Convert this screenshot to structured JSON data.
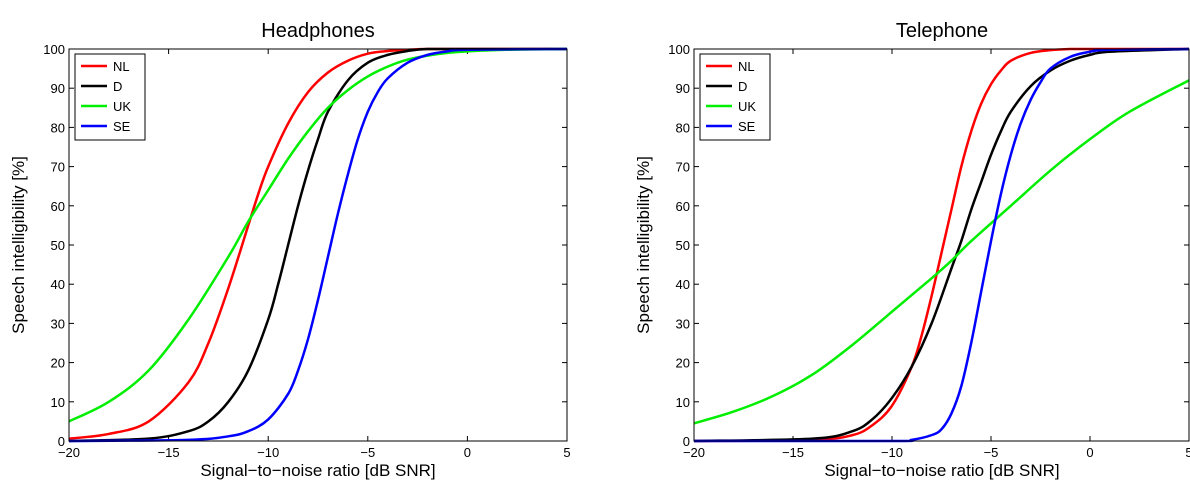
{
  "chart_data": [
    {
      "type": "line",
      "title": "Headphones",
      "xlabel": "Signal−to−noise ratio [dB SNR]",
      "ylabel": "Speech intelligibility [%]",
      "xlim": [
        -20,
        5
      ],
      "ylim": [
        0,
        100
      ],
      "xticks": [
        "−20",
        "−15",
        "−10",
        "−5",
        "0",
        "5"
      ],
      "yticks": [
        "0",
        "10",
        "20",
        "30",
        "40",
        "50",
        "60",
        "70",
        "80",
        "90",
        "100"
      ],
      "grid": false,
      "legend_position": "top-left",
      "series": [
        {
          "name": "NL",
          "color": "#ff0000",
          "x": [
            -20,
            -18,
            -16,
            -14,
            -13,
            -12,
            -11,
            -10.5,
            -10,
            -9,
            -8,
            -7,
            -6,
            -5,
            -4,
            -3,
            -2,
            0,
            5
          ],
          "y": [
            0.6,
            1.8,
            5,
            15,
            25,
            39,
            55,
            63,
            70,
            81,
            89,
            94,
            97,
            98.8,
            99.5,
            99.8,
            100,
            100,
            100
          ]
        },
        {
          "name": "D",
          "color": "#000000",
          "x": [
            -20,
            -16,
            -14,
            -13,
            -12,
            -11,
            -10,
            -9.5,
            -9,
            -8.5,
            -8,
            -7.5,
            -7,
            -6,
            -5,
            -4,
            -3,
            -2,
            0,
            5
          ],
          "y": [
            0,
            0.6,
            2.5,
            5,
            10,
            18,
            31,
            40,
            50,
            60,
            69,
            77,
            84,
            92,
            96.5,
            98.5,
            99.5,
            100,
            100,
            100
          ]
        },
        {
          "name": "UK",
          "color": "#00ee00",
          "x": [
            -20,
            -18,
            -16,
            -14,
            -12,
            -11,
            -10,
            -9,
            -8,
            -7,
            -6,
            -5,
            -4,
            -3,
            -2,
            -1,
            0,
            2,
            5
          ],
          "y": [
            5,
            10,
            18,
            31,
            47,
            56,
            64,
            72,
            79,
            85,
            89.5,
            93,
            95.5,
            97.3,
            98.3,
            99,
            99.4,
            99.8,
            100
          ]
        },
        {
          "name": "SE",
          "color": "#0000ff",
          "x": [
            -20,
            -14,
            -12,
            -11,
            -10,
            -9,
            -8.5,
            -8,
            -7.5,
            -7,
            -6.5,
            -6,
            -5.5,
            -5,
            -4.5,
            -4,
            -3,
            -2,
            -1,
            0,
            5
          ],
          "y": [
            0,
            0.3,
            1.2,
            2.5,
            5.5,
            12,
            18,
            26,
            36,
            47,
            58,
            68,
            77,
            84,
            89,
            92.5,
            96.5,
            98.5,
            99.4,
            99.8,
            100
          ]
        }
      ]
    },
    {
      "type": "line",
      "title": "Telephone",
      "xlabel": "Signal−to−noise ratio [dB SNR]",
      "ylabel": "Speech intelligibility [%]",
      "xlim": [
        -20,
        5
      ],
      "ylim": [
        0,
        100
      ],
      "xticks": [
        "−20",
        "−15",
        "−10",
        "−5",
        "0",
        "5"
      ],
      "yticks": [
        "0",
        "10",
        "20",
        "30",
        "40",
        "50",
        "60",
        "70",
        "80",
        "90",
        "100"
      ],
      "grid": false,
      "legend_position": "top-left",
      "series": [
        {
          "name": "NL",
          "color": "#ff0000",
          "x": [
            -20,
            -14,
            -12,
            -11,
            -10,
            -9,
            -8.5,
            -8,
            -7.5,
            -7,
            -6.5,
            -6,
            -5.5,
            -5,
            -4.5,
            -4,
            -3,
            -2,
            -1,
            0,
            5
          ],
          "y": [
            0,
            0.3,
            1.5,
            4,
            9,
            19,
            27,
            37,
            48,
            59,
            70,
            79,
            86,
            91,
            94.5,
            97,
            99,
            99.7,
            100,
            100,
            100
          ]
        },
        {
          "name": "D",
          "color": "#000000",
          "x": [
            -20,
            -14,
            -12,
            -11,
            -10,
            -9,
            -8,
            -7,
            -6.5,
            -6,
            -5.5,
            -5,
            -4.5,
            -4,
            -3,
            -2,
            -1,
            0,
            1,
            5
          ],
          "y": [
            0,
            0.6,
            2.5,
            5.5,
            11,
            19,
            30,
            44,
            51,
            59,
            66,
            73,
            79,
            84,
            90.5,
            94.5,
            97,
            98.5,
            99.3,
            100
          ]
        },
        {
          "name": "UK",
          "color": "#00ee00",
          "x": [
            -20,
            -18,
            -16,
            -14,
            -12,
            -10,
            -8,
            -7,
            -6,
            -4,
            -2,
            0,
            2,
            5
          ],
          "y": [
            4.5,
            7.5,
            11.5,
            17,
            24.5,
            33,
            41.5,
            46,
            51,
            60,
            69,
            77,
            84,
            92
          ]
        },
        {
          "name": "SE",
          "color": "#0000ff",
          "x": [
            -20,
            -10,
            -9,
            -8,
            -7.5,
            -7,
            -6.5,
            -6,
            -5.5,
            -5,
            -4.5,
            -4,
            -3.5,
            -3,
            -2.5,
            -2,
            -1,
            0,
            1,
            5
          ],
          "y": [
            0,
            0,
            0.3,
            1.5,
            3,
            7,
            14,
            25,
            38,
            51,
            63,
            73,
            81,
            87,
            91.5,
            95,
            98,
            99.3,
            99.8,
            100
          ]
        }
      ]
    }
  ]
}
